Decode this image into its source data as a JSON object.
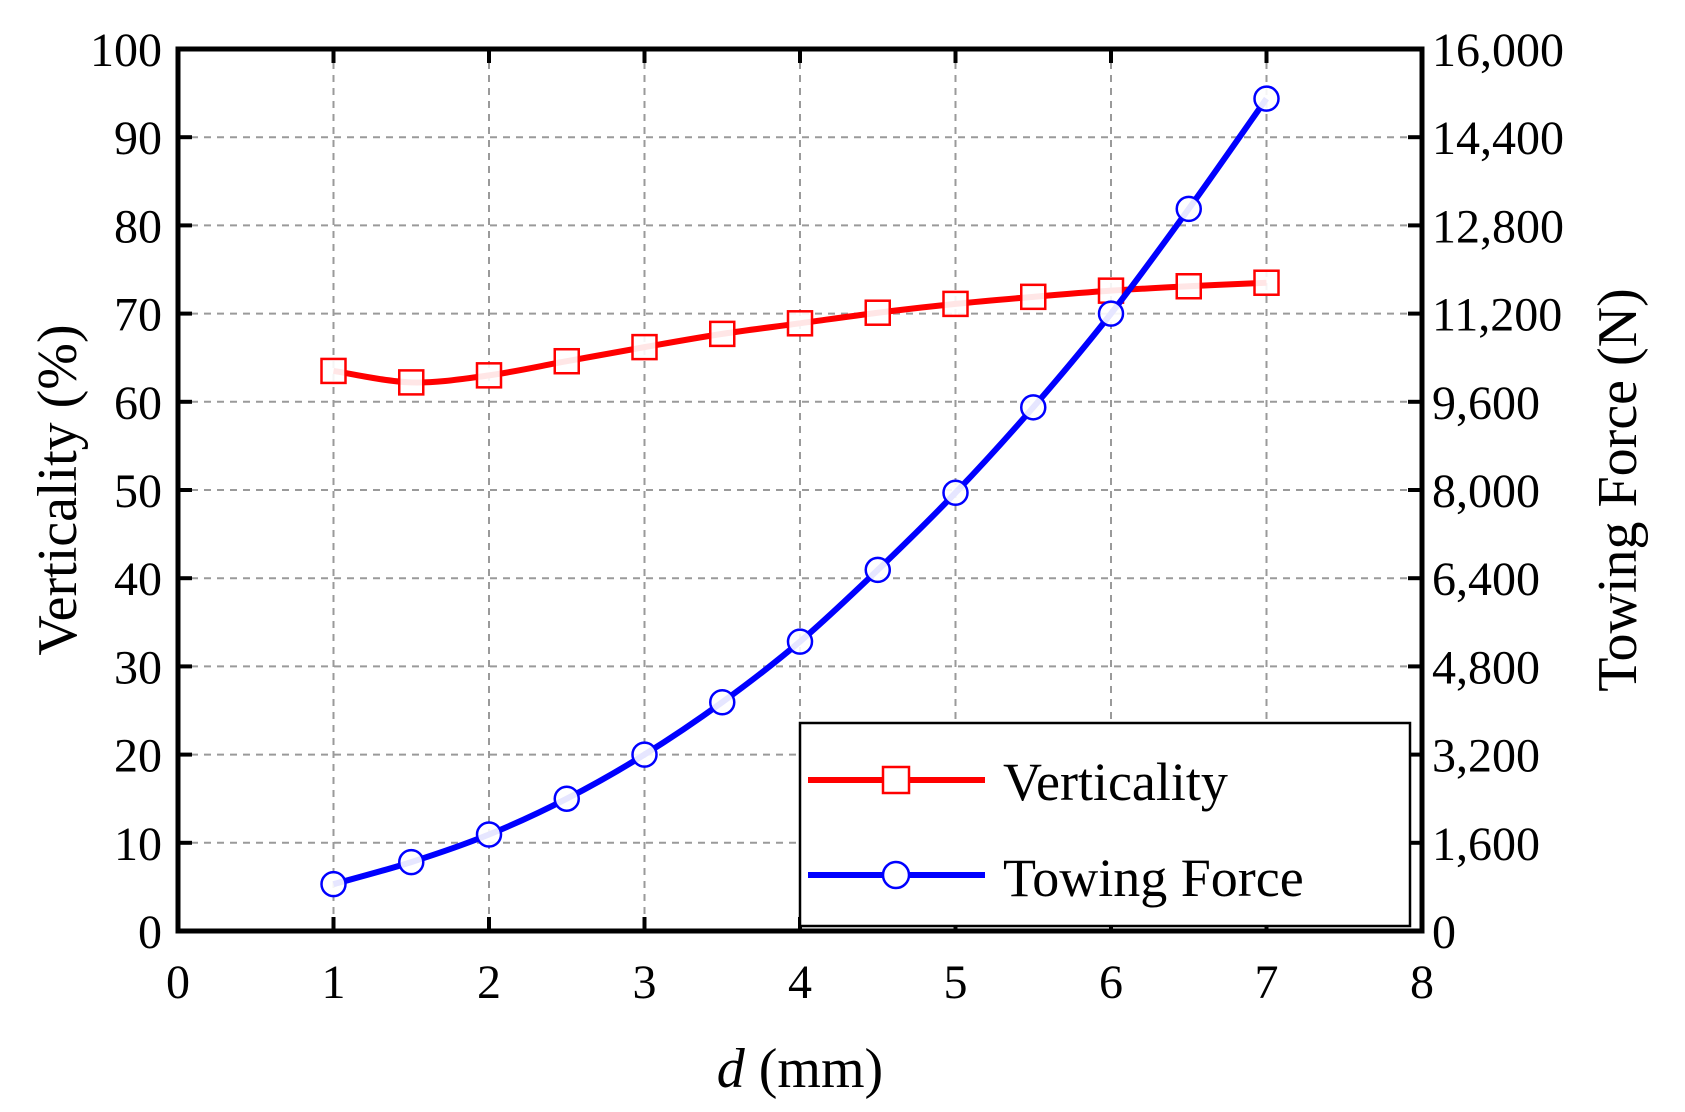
{
  "chart_data": {
    "type": "line",
    "title": "",
    "xlabel_var": "d",
    "xlabel_unit": " (mm)",
    "ylabel_left": "Verticality (%)",
    "ylabel_right": "Towing Force (N)",
    "xlim": [
      0,
      8
    ],
    "ylim_left": [
      0,
      100
    ],
    "ylim_right": [
      0,
      16000
    ],
    "xticks": [
      0,
      1,
      2,
      3,
      4,
      5,
      6,
      7,
      8
    ],
    "xtick_labels": [
      "0",
      "1",
      "2",
      "3",
      "4",
      "5",
      "6",
      "7",
      "8"
    ],
    "yticks_left": [
      0,
      10,
      20,
      30,
      40,
      50,
      60,
      70,
      80,
      90,
      100
    ],
    "ytick_labels_left": [
      "0",
      "10",
      "20",
      "30",
      "40",
      "50",
      "60",
      "70",
      "80",
      "90",
      "100"
    ],
    "yticks_right": [
      0,
      1600,
      3200,
      4800,
      6400,
      8000,
      9600,
      11200,
      12800,
      14400,
      16000
    ],
    "ytick_labels_right": [
      "0",
      "1,600",
      "3,200",
      "4,800",
      "6,400",
      "8,000",
      "9,600",
      "11,200",
      "12,800",
      "14,400",
      "16,000"
    ],
    "grid": true,
    "legend_position": "bottom-right",
    "x": [
      1,
      1.5,
      2,
      2.5,
      3,
      3.5,
      4,
      4.5,
      5,
      5.5,
      6,
      6.5,
      7
    ],
    "series": [
      {
        "name": "Verticality",
        "axis": "left",
        "color": "#ff0000",
        "marker": "square",
        "values": [
          63.5,
          62.2,
          63.0,
          64.6,
          66.2,
          67.7,
          68.9,
          70.1,
          71.1,
          71.9,
          72.6,
          73.1,
          73.5
        ]
      },
      {
        "name": "Towing Force",
        "axis": "right",
        "color": "#0000ff",
        "marker": "circle",
        "values": [
          850,
          1250,
          1750,
          2400,
          3200,
          4150,
          5250,
          6550,
          7950,
          9500,
          11200,
          13100,
          15100
        ]
      }
    ]
  }
}
